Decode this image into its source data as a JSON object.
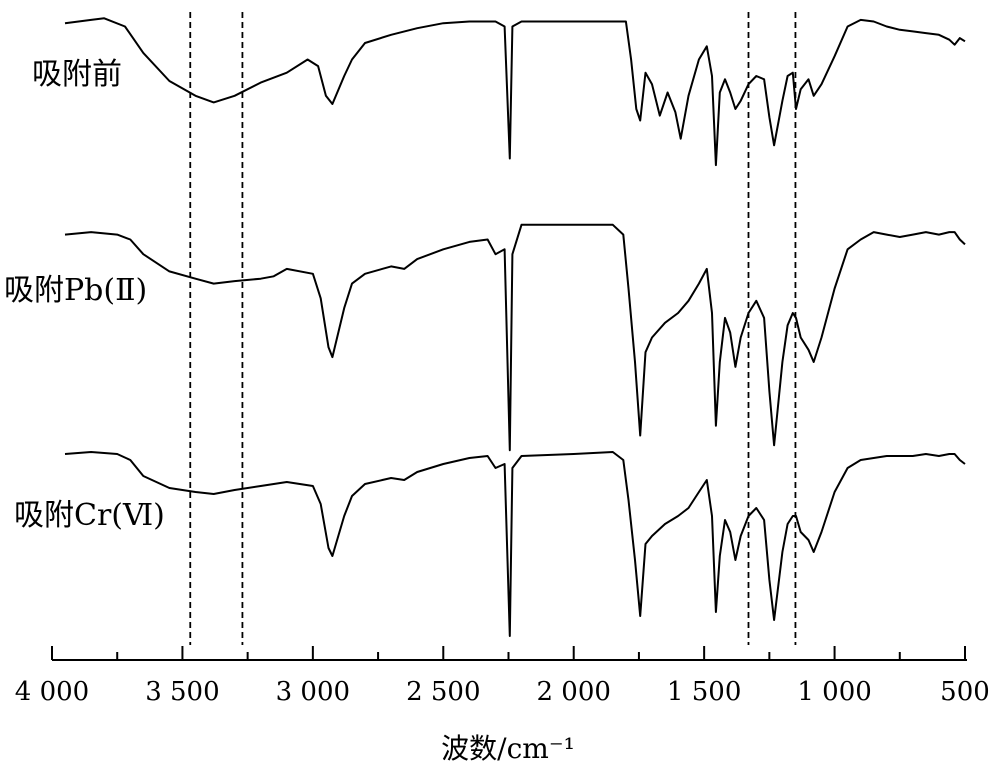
{
  "chart_data": {
    "type": "line",
    "title": "",
    "xlabel": "波数/cm⁻¹",
    "ylabel": "",
    "xlim": [
      4000,
      500
    ],
    "x_reversed": true,
    "y_axis_shown": false,
    "xticks": [
      4000,
      3500,
      3000,
      2500,
      2000,
      1500,
      1000,
      500
    ],
    "xtick_labels": [
      "4 000",
      "3 500",
      "3 000",
      "2 500",
      "2 000",
      "1 500",
      "1 000",
      "500"
    ],
    "minor_xticks": [
      3750,
      3250,
      2750,
      2250,
      1750,
      1250,
      750
    ],
    "reference_lines_x": [
      3470,
      3270,
      1330,
      1150
    ],
    "line_color": "#000000",
    "series": [
      {
        "name": "吸附前",
        "points": [
          [
            3950,
            0.92
          ],
          [
            3850,
            0.94
          ],
          [
            3800,
            0.95
          ],
          [
            3720,
            0.9
          ],
          [
            3650,
            0.74
          ],
          [
            3550,
            0.57
          ],
          [
            3450,
            0.48
          ],
          [
            3380,
            0.44
          ],
          [
            3300,
            0.48
          ],
          [
            3200,
            0.56
          ],
          [
            3100,
            0.62
          ],
          [
            3020,
            0.7
          ],
          [
            2980,
            0.66
          ],
          [
            2950,
            0.48
          ],
          [
            2925,
            0.43
          ],
          [
            2880,
            0.6
          ],
          [
            2850,
            0.7
          ],
          [
            2800,
            0.8
          ],
          [
            2700,
            0.85
          ],
          [
            2600,
            0.89
          ],
          [
            2500,
            0.92
          ],
          [
            2400,
            0.93
          ],
          [
            2300,
            0.93
          ],
          [
            2265,
            0.9
          ],
          [
            2245,
            0.1
          ],
          [
            2235,
            0.9
          ],
          [
            2200,
            0.93
          ],
          [
            2000,
            0.93
          ],
          [
            1860,
            0.93
          ],
          [
            1800,
            0.93
          ],
          [
            1780,
            0.7
          ],
          [
            1760,
            0.4
          ],
          [
            1745,
            0.33
          ],
          [
            1725,
            0.62
          ],
          [
            1700,
            0.55
          ],
          [
            1670,
            0.36
          ],
          [
            1640,
            0.5
          ],
          [
            1610,
            0.38
          ],
          [
            1590,
            0.22
          ],
          [
            1560,
            0.48
          ],
          [
            1520,
            0.7
          ],
          [
            1490,
            0.78
          ],
          [
            1470,
            0.6
          ],
          [
            1455,
            0.06
          ],
          [
            1440,
            0.5
          ],
          [
            1420,
            0.58
          ],
          [
            1400,
            0.5
          ],
          [
            1380,
            0.4
          ],
          [
            1360,
            0.45
          ],
          [
            1330,
            0.55
          ],
          [
            1300,
            0.6
          ],
          [
            1270,
            0.58
          ],
          [
            1250,
            0.35
          ],
          [
            1232,
            0.18
          ],
          [
            1200,
            0.45
          ],
          [
            1180,
            0.6
          ],
          [
            1160,
            0.62
          ],
          [
            1148,
            0.4
          ],
          [
            1130,
            0.52
          ],
          [
            1100,
            0.58
          ],
          [
            1080,
            0.48
          ],
          [
            1050,
            0.55
          ],
          [
            1000,
            0.72
          ],
          [
            950,
            0.9
          ],
          [
            900,
            0.94
          ],
          [
            850,
            0.93
          ],
          [
            800,
            0.9
          ],
          [
            750,
            0.88
          ],
          [
            700,
            0.87
          ],
          [
            650,
            0.86
          ],
          [
            600,
            0.85
          ],
          [
            560,
            0.82
          ],
          [
            540,
            0.79
          ],
          [
            520,
            0.83
          ],
          [
            500,
            0.81
          ]
        ]
      },
      {
        "name": "吸附Pb(Ⅱ)",
        "points": [
          [
            3950,
            0.92
          ],
          [
            3850,
            0.93
          ],
          [
            3750,
            0.92
          ],
          [
            3700,
            0.9
          ],
          [
            3650,
            0.84
          ],
          [
            3550,
            0.77
          ],
          [
            3450,
            0.74
          ],
          [
            3380,
            0.72
          ],
          [
            3300,
            0.73
          ],
          [
            3200,
            0.74
          ],
          [
            3150,
            0.75
          ],
          [
            3100,
            0.78
          ],
          [
            3000,
            0.76
          ],
          [
            2970,
            0.66
          ],
          [
            2940,
            0.46
          ],
          [
            2925,
            0.42
          ],
          [
            2880,
            0.62
          ],
          [
            2850,
            0.72
          ],
          [
            2800,
            0.76
          ],
          [
            2700,
            0.79
          ],
          [
            2650,
            0.78
          ],
          [
            2600,
            0.82
          ],
          [
            2500,
            0.86
          ],
          [
            2400,
            0.89
          ],
          [
            2330,
            0.9
          ],
          [
            2300,
            0.84
          ],
          [
            2265,
            0.86
          ],
          [
            2245,
            0.04
          ],
          [
            2235,
            0.84
          ],
          [
            2200,
            0.96
          ],
          [
            2000,
            0.96
          ],
          [
            1850,
            0.96
          ],
          [
            1810,
            0.92
          ],
          [
            1790,
            0.7
          ],
          [
            1765,
            0.4
          ],
          [
            1745,
            0.1
          ],
          [
            1725,
            0.44
          ],
          [
            1700,
            0.5
          ],
          [
            1650,
            0.56
          ],
          [
            1600,
            0.6
          ],
          [
            1560,
            0.65
          ],
          [
            1520,
            0.72
          ],
          [
            1490,
            0.78
          ],
          [
            1470,
            0.6
          ],
          [
            1455,
            0.14
          ],
          [
            1440,
            0.4
          ],
          [
            1420,
            0.58
          ],
          [
            1400,
            0.52
          ],
          [
            1380,
            0.38
          ],
          [
            1360,
            0.5
          ],
          [
            1330,
            0.6
          ],
          [
            1300,
            0.65
          ],
          [
            1270,
            0.58
          ],
          [
            1250,
            0.28
          ],
          [
            1232,
            0.06
          ],
          [
            1200,
            0.4
          ],
          [
            1180,
            0.55
          ],
          [
            1160,
            0.6
          ],
          [
            1148,
            0.58
          ],
          [
            1130,
            0.5
          ],
          [
            1100,
            0.45
          ],
          [
            1080,
            0.4
          ],
          [
            1050,
            0.5
          ],
          [
            1000,
            0.7
          ],
          [
            950,
            0.86
          ],
          [
            900,
            0.9
          ],
          [
            850,
            0.93
          ],
          [
            800,
            0.92
          ],
          [
            750,
            0.91
          ],
          [
            700,
            0.92
          ],
          [
            650,
            0.93
          ],
          [
            600,
            0.92
          ],
          [
            560,
            0.93
          ],
          [
            540,
            0.93
          ],
          [
            520,
            0.9
          ],
          [
            500,
            0.88
          ]
        ]
      },
      {
        "name": "吸附Cr(Ⅵ)",
        "points": [
          [
            3950,
            0.93
          ],
          [
            3850,
            0.94
          ],
          [
            3750,
            0.93
          ],
          [
            3700,
            0.9
          ],
          [
            3650,
            0.82
          ],
          [
            3550,
            0.76
          ],
          [
            3450,
            0.74
          ],
          [
            3380,
            0.73
          ],
          [
            3300,
            0.75
          ],
          [
            3200,
            0.77
          ],
          [
            3100,
            0.79
          ],
          [
            3000,
            0.77
          ],
          [
            2970,
            0.68
          ],
          [
            2940,
            0.46
          ],
          [
            2925,
            0.42
          ],
          [
            2880,
            0.62
          ],
          [
            2850,
            0.72
          ],
          [
            2800,
            0.78
          ],
          [
            2700,
            0.81
          ],
          [
            2650,
            0.8
          ],
          [
            2600,
            0.84
          ],
          [
            2500,
            0.88
          ],
          [
            2400,
            0.91
          ],
          [
            2330,
            0.92
          ],
          [
            2300,
            0.86
          ],
          [
            2265,
            0.88
          ],
          [
            2245,
            0.02
          ],
          [
            2235,
            0.86
          ],
          [
            2200,
            0.92
          ],
          [
            2000,
            0.93
          ],
          [
            1850,
            0.94
          ],
          [
            1810,
            0.9
          ],
          [
            1790,
            0.7
          ],
          [
            1765,
            0.4
          ],
          [
            1745,
            0.12
          ],
          [
            1725,
            0.48
          ],
          [
            1700,
            0.52
          ],
          [
            1650,
            0.58
          ],
          [
            1600,
            0.62
          ],
          [
            1560,
            0.66
          ],
          [
            1520,
            0.74
          ],
          [
            1490,
            0.8
          ],
          [
            1470,
            0.62
          ],
          [
            1455,
            0.14
          ],
          [
            1440,
            0.42
          ],
          [
            1420,
            0.6
          ],
          [
            1400,
            0.54
          ],
          [
            1380,
            0.4
          ],
          [
            1360,
            0.52
          ],
          [
            1330,
            0.62
          ],
          [
            1300,
            0.66
          ],
          [
            1270,
            0.6
          ],
          [
            1250,
            0.3
          ],
          [
            1232,
            0.1
          ],
          [
            1200,
            0.44
          ],
          [
            1180,
            0.58
          ],
          [
            1160,
            0.62
          ],
          [
            1148,
            0.62
          ],
          [
            1130,
            0.54
          ],
          [
            1100,
            0.5
          ],
          [
            1080,
            0.44
          ],
          [
            1050,
            0.54
          ],
          [
            1000,
            0.74
          ],
          [
            950,
            0.86
          ],
          [
            900,
            0.9
          ],
          [
            850,
            0.91
          ],
          [
            800,
            0.92
          ],
          [
            750,
            0.92
          ],
          [
            700,
            0.92
          ],
          [
            650,
            0.93
          ],
          [
            600,
            0.92
          ],
          [
            560,
            0.93
          ],
          [
            540,
            0.93
          ],
          [
            520,
            0.9
          ],
          [
            500,
            0.88
          ]
        ]
      }
    ]
  }
}
